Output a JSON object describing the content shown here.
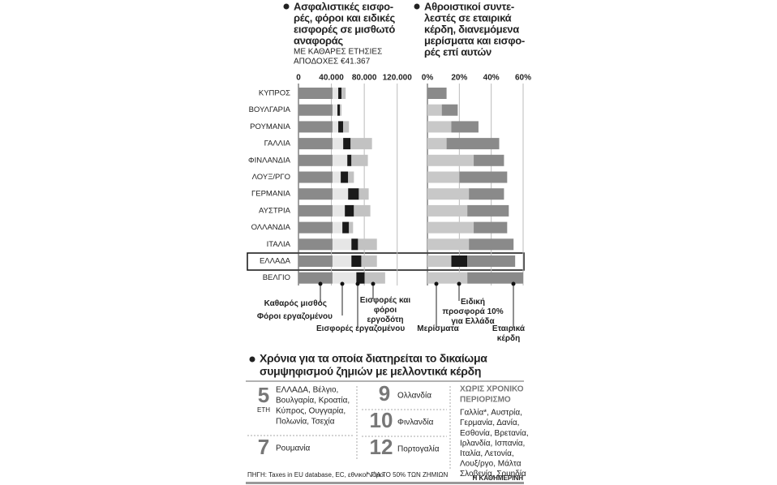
{
  "chart_data": [
    {
      "type": "bar",
      "orientation": "horizontal",
      "stacked": true,
      "title": [
        "Ασφαλιστικές εισφο-",
        "ρές, φόροι και ειδικές",
        "εισφορές σε μισθωτό",
        "αναφοράς"
      ],
      "subtitle": [
        "ΜΕ ΚΑΘΑΡΕΣ ΕΤΗΣΙΕΣ",
        "ΑΠΟΔΟΧΕΣ €41.367"
      ],
      "categories": [
        "ΚΥΠΡΟΣ",
        "ΒΟΥΛΓΑΡΙΑ",
        "ΡΟΥΜΑΝΙΑ",
        "ΓΑΛΛΙΑ",
        "ΦΙΝΛΑΝΔΙΑ",
        "ΛΟΥΞ/ΡΓΟ",
        "ΓΕΡΜΑΝΙΑ",
        "ΑΥΣΤΡΙΑ",
        "ΟΛΛΑΝΔΙΑ",
        "ΙΤΑΛΙΑ",
        "ΕΛΛΑΔΑ",
        "ΒΕΛΓΙΟ"
      ],
      "series": [
        {
          "name": "Καθαρός μισθός",
          "color": "#8a8a8a",
          "values": [
            41367,
            41367,
            41367,
            41367,
            41367,
            41367,
            41367,
            41367,
            41367,
            41367,
            41367,
            41367
          ]
        },
        {
          "name": "Φόροι εργαζομένου",
          "color": "#e6e6e6",
          "values": [
            7000,
            6000,
            7000,
            13000,
            18000,
            10000,
            19000,
            15000,
            12000,
            23000,
            23000,
            29000
          ]
        },
        {
          "name": "Εισφορές εργαζομένου",
          "color": "#1a1a1a",
          "values": [
            4000,
            3000,
            6000,
            9000,
            5000,
            9000,
            13000,
            11000,
            8000,
            8000,
            12000,
            10000
          ]
        },
        {
          "name": "Εισφορές και φόροι εργοδότη",
          "color": "#c2c2c2",
          "values": [
            5000,
            2000,
            7000,
            26000,
            20000,
            7000,
            12000,
            20000,
            5000,
            23000,
            19000,
            25000
          ]
        }
      ],
      "xlim": [
        0,
        140000
      ],
      "xticks": [
        0,
        {
          "value": 40000,
          "label": "40.000"
        },
        {
          "value": 80000,
          "label": "80.000"
        },
        {
          "value": 120000,
          "label": "120.000"
        }
      ],
      "grid": true
    },
    {
      "type": "bar",
      "orientation": "horizontal",
      "stacked": true,
      "title": [
        "Αθροιστικοί συντε-",
        "λεστές σε εταιρικά",
        "κέρδη, διανεμόμενα",
        "μερίσματα και εισφο-",
        "ρές επί αυτών"
      ],
      "series": [
        {
          "name": "Μερίσματα",
          "color": "#c8c8c8",
          "values": [
            0,
            9,
            15,
            12,
            29,
            20,
            26,
            25,
            29,
            26,
            15,
            25
          ]
        },
        {
          "name": "Ειδική προσφορά 10% για Ελλάδα",
          "color": "#1a1a1a",
          "values": [
            0,
            0,
            0,
            0,
            0,
            0,
            0,
            0,
            0,
            0,
            10,
            0
          ]
        },
        {
          "name": "Εταιρικά κέρδη",
          "color": "#8a8a8a",
          "values": [
            12,
            10,
            17,
            33,
            19,
            30,
            22,
            26,
            21,
            28,
            30,
            35
          ]
        }
      ],
      "xlim": [
        0,
        60
      ],
      "xticks": [
        {
          "value": 0,
          "label": "0%"
        },
        {
          "value": 20,
          "label": "20%"
        },
        {
          "value": 40,
          "label": "40%"
        },
        {
          "value": 60,
          "label": "60%"
        }
      ],
      "grid": true
    }
  ],
  "loss_carryforward": {
    "title": [
      "Χρόνια για τα οποία διατηρείται το δικαίωμα",
      "συμψηφισμού ζημιών με μελλοντικά κέρδη"
    ],
    "groups": [
      {
        "years": 5,
        "unit": "ΕΤΗ",
        "countries": [
          "ΕΛΛΑΔΑ, Βέλγιο,",
          "Βουλγαρία, Κροατία,",
          "Κύπρος, Ουγγαρία,",
          "Πολωνία, Τσεχία"
        ]
      },
      {
        "years": 7,
        "countries": [
          "Ρουμανία"
        ]
      },
      {
        "years": 9,
        "countries": [
          "Ολλανδία"
        ]
      },
      {
        "years": 10,
        "countries": [
          "Φινλανδία"
        ]
      },
      {
        "years": 12,
        "countries": [
          "Πορτογαλία"
        ]
      }
    ],
    "no_limit": {
      "heading": [
        "ΧΩΡΙΣ ΧΡΟΝΙΚΟ",
        "ΠΕΡΙΟΡΙΣΜΟ"
      ],
      "countries": [
        "Γαλλία*, Αυστρία,",
        "Γερμανία, Δανία,",
        "Εσθονία, Βρετανία,",
        "Ιρλανδία, Ισπανία,",
        "Ιταλία, Λετονία,",
        "Λουξ/ργο, Μάλτα",
        "Σλοβενία, Σουηδία"
      ]
    },
    "source": "ΠΗΓΗ: Taxes in EU database, EC, εθνικοί νόμοι",
    "footnote": "* ΓΙΑ ΤΟ 50% ΤΩΝ ΖΗΜΙΩΝ",
    "publisher": "Η ΚΑΘΗΜΕΡΙΝΗ"
  }
}
